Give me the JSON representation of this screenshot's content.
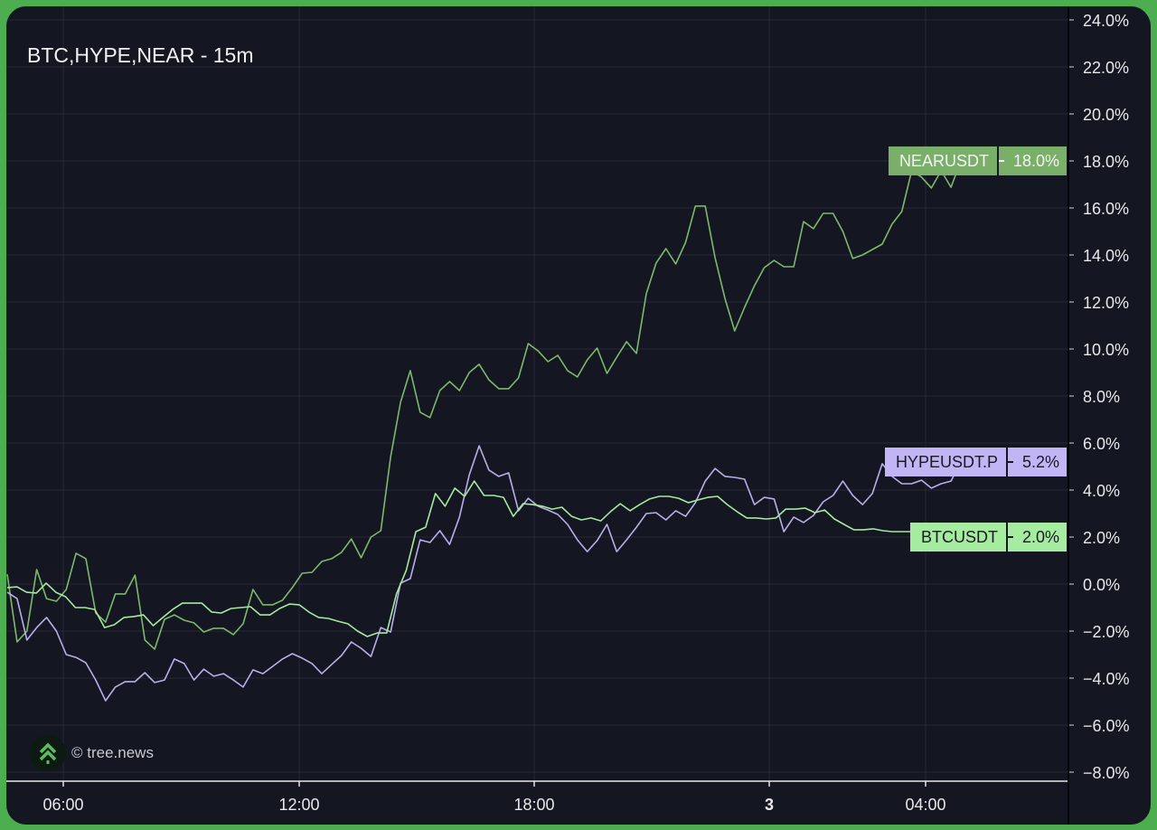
{
  "title": "BTC,HYPE,NEAR - 15m",
  "watermark": "© tree.news",
  "chart_data": {
    "type": "line",
    "title": "BTC,HYPE,NEAR - 15m",
    "y_unit": "%",
    "ylim": [
      -8,
      24
    ],
    "y_ticks": [
      "24.0%",
      "22.0%",
      "20.0%",
      "18.0%",
      "16.0%",
      "14.0%",
      "12.0%",
      "10.0%",
      "8.0%",
      "6.0%",
      "4.0%",
      "2.0%",
      "0.0%",
      "−2.0%",
      "−4.0%",
      "−6.0%",
      "−8.0%"
    ],
    "y_tick_values": [
      24,
      22,
      20,
      18,
      16,
      14,
      12,
      10,
      8,
      6,
      4,
      2,
      0,
      -2,
      -4,
      -6,
      -8
    ],
    "x_ticks": [
      {
        "label": "06:00",
        "bold": false
      },
      {
        "label": "12:00",
        "bold": false
      },
      {
        "label": "18:00",
        "bold": false
      },
      {
        "label": "3",
        "bold": true
      },
      {
        "label": "04:00",
        "bold": false
      }
    ],
    "grid": true,
    "series": [
      {
        "name": "NEARUSDT",
        "last_label": "18.0%",
        "color": "#7db86d",
        "label_color": "#7aaf6a",
        "label_text": "#f4f4f4",
        "values": [
          0.42,
          -2.46,
          -2.0,
          0.62,
          -0.62,
          -0.73,
          -0.23,
          1.31,
          1.08,
          -1.23,
          -1.62,
          -0.42,
          -0.42,
          0.38,
          -2.38,
          -2.77,
          -1.5,
          -1.31,
          -1.54,
          -1.65,
          -2.04,
          -1.88,
          -1.88,
          -2.15,
          -1.69,
          -0.23,
          -0.88,
          -0.88,
          -0.69,
          -0.15,
          0.46,
          0.5,
          0.96,
          1.08,
          1.35,
          1.92,
          1.12,
          2.0,
          2.27,
          5.42,
          7.73,
          9.08,
          7.31,
          7.08,
          8.23,
          8.62,
          8.23,
          9.0,
          9.35,
          8.69,
          8.31,
          8.31,
          8.77,
          10.23,
          9.92,
          9.46,
          9.73,
          9.08,
          8.81,
          9.54,
          10.04,
          8.96,
          9.65,
          10.31,
          9.81,
          12.35,
          13.65,
          14.27,
          13.62,
          14.54,
          16.08,
          16.08,
          13.88,
          12.15,
          10.77,
          11.77,
          12.69,
          13.46,
          13.77,
          13.5,
          13.5,
          15.42,
          15.12,
          15.77,
          15.77,
          15.0,
          13.85,
          14.0,
          14.23,
          14.46,
          15.31,
          15.85,
          17.58,
          17.31,
          16.85,
          17.58,
          16.88,
          18.0
        ]
      },
      {
        "name": "HYPEUSDT.P",
        "last_label": "5.2%",
        "color": "#b8aee8",
        "label_color": "#c1b5f6",
        "label_text": "#1a1a22",
        "values": [
          -0.35,
          -0.62,
          -2.38,
          -1.85,
          -1.42,
          -2.0,
          -3.0,
          -3.12,
          -3.35,
          -4.08,
          -4.96,
          -4.38,
          -4.15,
          -4.15,
          -3.77,
          -4.19,
          -4.08,
          -3.19,
          -3.38,
          -4.08,
          -3.62,
          -3.92,
          -3.81,
          -4.08,
          -4.38,
          -3.65,
          -3.81,
          -3.5,
          -3.19,
          -2.96,
          -3.15,
          -3.38,
          -3.81,
          -3.42,
          -3.04,
          -2.46,
          -2.73,
          -3.08,
          -1.85,
          -2.04,
          0.04,
          0.23,
          1.88,
          1.77,
          2.27,
          1.69,
          2.85,
          4.65,
          5.88,
          4.85,
          4.58,
          4.73,
          3.12,
          3.65,
          3.31,
          3.15,
          2.96,
          2.54,
          1.88,
          1.38,
          1.85,
          2.54,
          1.38,
          1.88,
          2.42,
          3.0,
          3.04,
          2.73,
          3.12,
          2.88,
          3.46,
          4.38,
          4.92,
          4.58,
          4.54,
          4.46,
          3.38,
          3.69,
          3.62,
          2.23,
          2.85,
          2.62,
          2.92,
          3.5,
          3.77,
          4.38,
          3.77,
          3.38,
          3.85,
          5.12,
          4.58,
          4.27,
          4.27,
          4.42,
          4.08,
          4.27,
          4.38,
          5.2
        ]
      },
      {
        "name": "BTCUSDT",
        "last_label": "2.0%",
        "color": "#a6e89e",
        "label_color": "#a6eca0",
        "label_text": "#1a1a22",
        "values": [
          -0.15,
          -0.12,
          -0.35,
          -0.38,
          0.04,
          -0.35,
          -0.54,
          -1.0,
          -1.0,
          -1.08,
          -1.85,
          -1.73,
          -1.42,
          -1.38,
          -1.31,
          -1.77,
          -1.42,
          -1.08,
          -0.81,
          -0.81,
          -0.81,
          -1.19,
          -1.23,
          -1.04,
          -1.0,
          -0.96,
          -1.31,
          -1.31,
          -1.04,
          -0.85,
          -0.88,
          -1.19,
          -1.42,
          -1.46,
          -1.58,
          -1.69,
          -2.0,
          -2.23,
          -2.08,
          -2.08,
          -0.42,
          0.58,
          2.23,
          2.42,
          3.85,
          3.31,
          4.08,
          3.73,
          4.38,
          3.77,
          3.77,
          3.69,
          2.88,
          3.42,
          3.38,
          3.31,
          3.19,
          3.27,
          2.88,
          2.73,
          2.81,
          2.69,
          3.08,
          3.42,
          3.12,
          3.38,
          3.62,
          3.73,
          3.73,
          3.65,
          3.46,
          3.58,
          3.69,
          3.73,
          3.38,
          3.08,
          2.81,
          2.81,
          2.77,
          2.81,
          3.19,
          3.19,
          3.23,
          3.04,
          3.15,
          2.77,
          2.54,
          2.31,
          2.31,
          2.35,
          2.27,
          2.23,
          2.23,
          2.23,
          2.19,
          2.04,
          1.88,
          1.77,
          2.0
        ]
      }
    ]
  }
}
